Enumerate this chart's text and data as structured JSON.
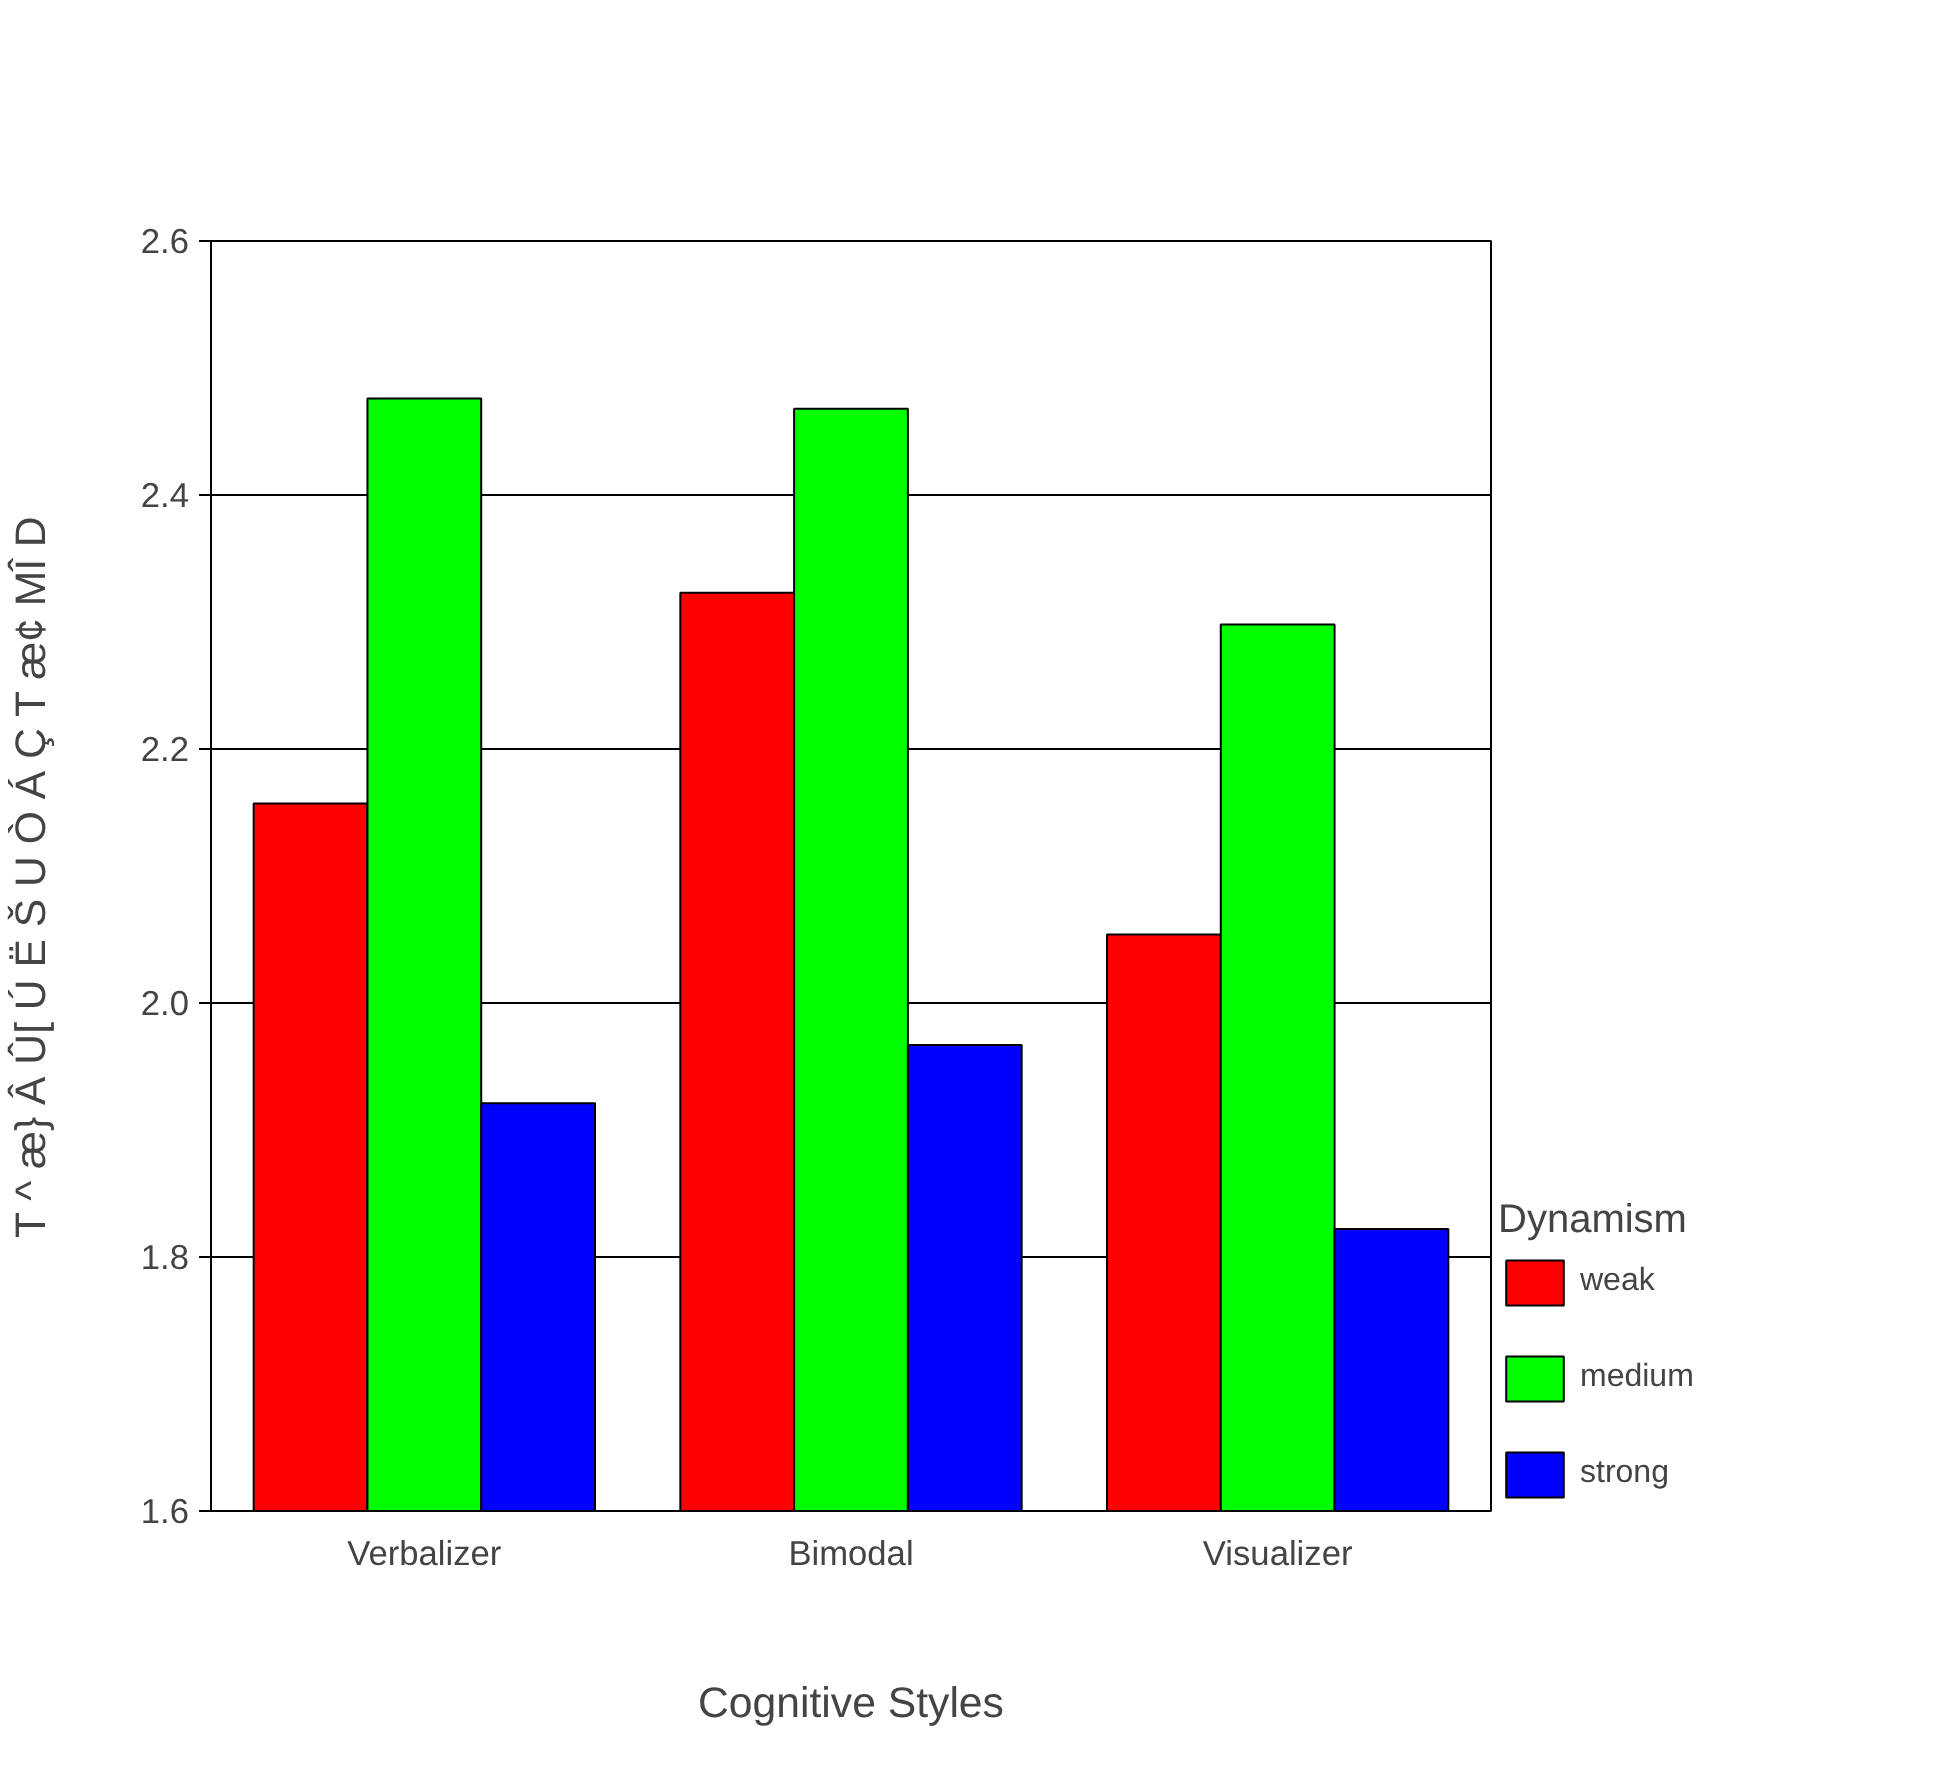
{
  "chart_data": {
    "type": "bar",
    "xlabel": "Cognitive Styles",
    "ylabel": "T ^ æ} Â Û[ Ú Ë Š U Ò Á Ç T æ¢ MÎ D",
    "legend_title": "Dynamism",
    "categories": [
      "Verbalizer",
      "Bimodal",
      "Visualizer"
    ],
    "series": [
      {
        "name": "weak",
        "color": "#ff0000",
        "values": [
          2.157,
          2.323,
          2.054
        ]
      },
      {
        "name": "medium",
        "color": "#00ff00",
        "values": [
          2.476,
          2.468,
          2.298
        ]
      },
      {
        "name": "strong",
        "color": "#0000ff",
        "values": [
          1.921,
          1.967,
          1.822
        ]
      }
    ],
    "ylim": [
      1.6,
      2.6
    ],
    "yticks": [
      1.6,
      1.8,
      {
        "value": 2.0,
        "label": "2.0"
      },
      2.2,
      2.4,
      2.6
    ],
    "grid": "y",
    "legend": "right"
  }
}
